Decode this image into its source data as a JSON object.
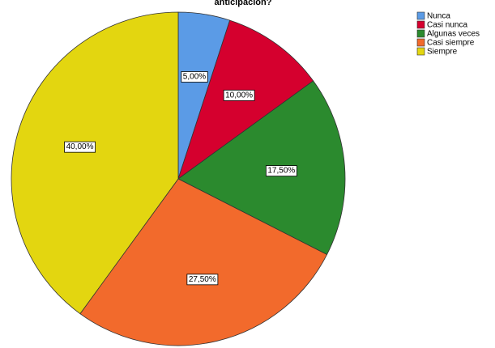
{
  "chart_data": {
    "type": "pie",
    "title": "anticipación?",
    "categories": [
      "Nunca",
      "Casi nunca",
      "Algunas veces",
      "Casi siempre",
      "Siempre"
    ],
    "values": [
      5,
      10,
      17.5,
      27.5,
      40
    ],
    "value_labels": [
      "5,00%",
      "10,00%",
      "17,50%",
      "27,50%",
      "40,00%"
    ],
    "colors": [
      "#5b9be6",
      "#d5002e",
      "#2b8a2e",
      "#f26a2c",
      "#e3d610"
    ]
  }
}
